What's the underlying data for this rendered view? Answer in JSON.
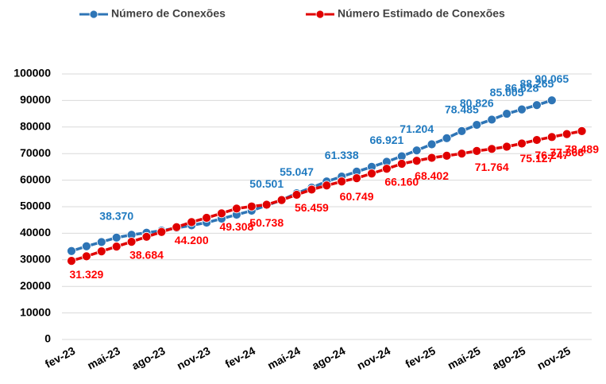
{
  "chart_data": {
    "type": "line",
    "categories": [
      "fev-23",
      null,
      null,
      "mai-23",
      null,
      null,
      "ago-23",
      null,
      null,
      "nov-23",
      null,
      null,
      "fev-24",
      null,
      null,
      "mai-24",
      null,
      null,
      "ago-24",
      null,
      null,
      "nov-24",
      null,
      null,
      "fev-25",
      null,
      null,
      "mai-25",
      null,
      null,
      "ago-25",
      null,
      null,
      "nov-25",
      null
    ],
    "series": [
      {
        "name": "Número de Conexões",
        "color": "#2e75b6",
        "label_color": "#1f7ac0",
        "values": [
          33300,
          35100,
          36700,
          38370,
          39400,
          40200,
          41000,
          42000,
          43000,
          44000,
          45500,
          47000,
          48500,
          50501,
          52500,
          55047,
          57200,
          59500,
          61338,
          63200,
          65000,
          66921,
          69000,
          71204,
          73500,
          75800,
          78485,
          80826,
          82800,
          85005,
          86628,
          88265,
          90065,
          null,
          null
        ],
        "value_labels": [
          null,
          null,
          null,
          "38.370",
          null,
          null,
          null,
          null,
          null,
          null,
          null,
          null,
          null,
          "50.501",
          null,
          "55.047",
          null,
          null,
          "61.338",
          null,
          null,
          "66.921",
          null,
          "71.204",
          null,
          null,
          "78.485",
          "80.826",
          null,
          "85.005",
          "86.628",
          "88.265",
          "90.065",
          null,
          null
        ]
      },
      {
        "name": "Número Estimado de Conexões",
        "color": "#e00000",
        "label_color": "#ff0000",
        "values": [
          29600,
          31329,
          33200,
          35000,
          36800,
          38684,
          40500,
          42300,
          44200,
          45800,
          47500,
          49308,
          50100,
          50738,
          52500,
          54500,
          56459,
          58000,
          59500,
          60749,
          62500,
          64300,
          66160,
          67300,
          68402,
          69200,
          70000,
          71000,
          71764,
          72600,
          73800,
          75127,
          76247,
          77368,
          78489
        ],
        "value_labels": [
          null,
          "31.329",
          null,
          null,
          null,
          "38.684",
          null,
          null,
          "44.200",
          null,
          null,
          "49.308",
          null,
          "50.738",
          null,
          null,
          "56.459",
          null,
          null,
          "60.749",
          null,
          null,
          "66.160",
          null,
          "68.402",
          null,
          null,
          null,
          "71.764",
          null,
          null,
          "75.127",
          "76.247",
          "77.368",
          "78.489"
        ]
      }
    ],
    "ylim": [
      0,
      100000
    ],
    "yticks": [
      0,
      10000,
      20000,
      30000,
      40000,
      50000,
      60000,
      70000,
      80000,
      90000,
      100000
    ],
    "grid": true,
    "legend": "top"
  }
}
